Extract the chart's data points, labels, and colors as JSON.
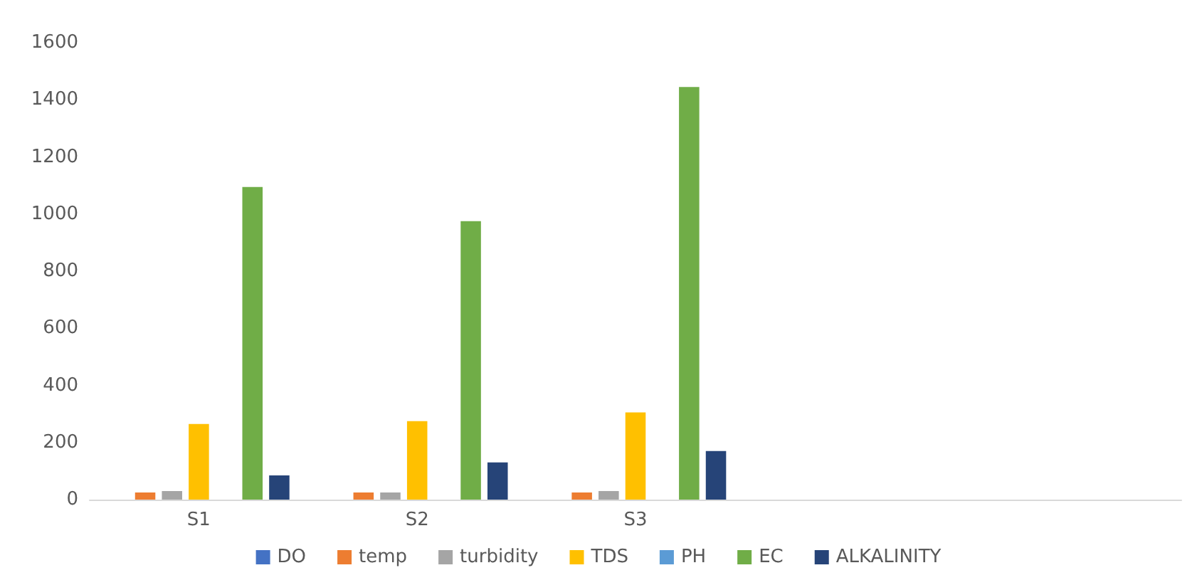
{
  "chart_data": {
    "type": "bar",
    "categories": [
      "S1",
      "S2",
      "S3",
      null,
      null
    ],
    "series": [
      {
        "name": "DO",
        "color": "#4472c4",
        "values": [
          null,
          null,
          null,
          null,
          null
        ]
      },
      {
        "name": "temp",
        "color": "#ed7d31",
        "values": [
          25,
          25,
          25,
          null,
          null
        ]
      },
      {
        "name": "turbidity",
        "color": "#a5a5a5",
        "values": [
          30,
          25,
          30,
          null,
          null
        ]
      },
      {
        "name": "TDS",
        "color": "#ffc000",
        "values": [
          265,
          275,
          305,
          null,
          null
        ]
      },
      {
        "name": "PH",
        "color": "#5b9bd5",
        "values": [
          null,
          null,
          null,
          null,
          null
        ]
      },
      {
        "name": "EC",
        "color": "#70ad47",
        "values": [
          1095,
          975,
          1445,
          null,
          null
        ]
      },
      {
        "name": "ALKALINITY",
        "color": "#264478",
        "values": [
          85,
          130,
          170,
          null,
          null
        ]
      }
    ],
    "ylim": [
      0,
      1600
    ],
    "yticks": [
      0,
      200,
      400,
      600,
      800,
      1000,
      1200,
      1400,
      1600
    ],
    "grid": false,
    "legend": "bottom"
  }
}
